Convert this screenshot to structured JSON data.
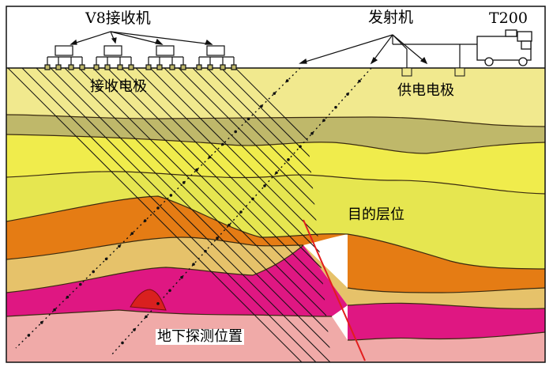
{
  "labels": {
    "receiver": "V8接收机",
    "transmitter": "发射机",
    "t200": "T200",
    "receive_electrodes": "接收电极",
    "supply_electrodes": "供电电极",
    "target_layer": "目的层位",
    "underground_position": "地下探测位置"
  },
  "colors": {
    "sky": "#ffffff",
    "layer_top": "#f1e98e",
    "layer_olive": "#bfb86a",
    "layer_yellow1": "#f0ec4c",
    "layer_yellow2": "#e6e650",
    "layer_orange": "#e57c14",
    "layer_tan": "#e6c26a",
    "layer_magenta": "#df1782",
    "layer_pink": "#f0aaa8",
    "fault": "#e21d1d",
    "anomaly": "#d9201f"
  }
}
